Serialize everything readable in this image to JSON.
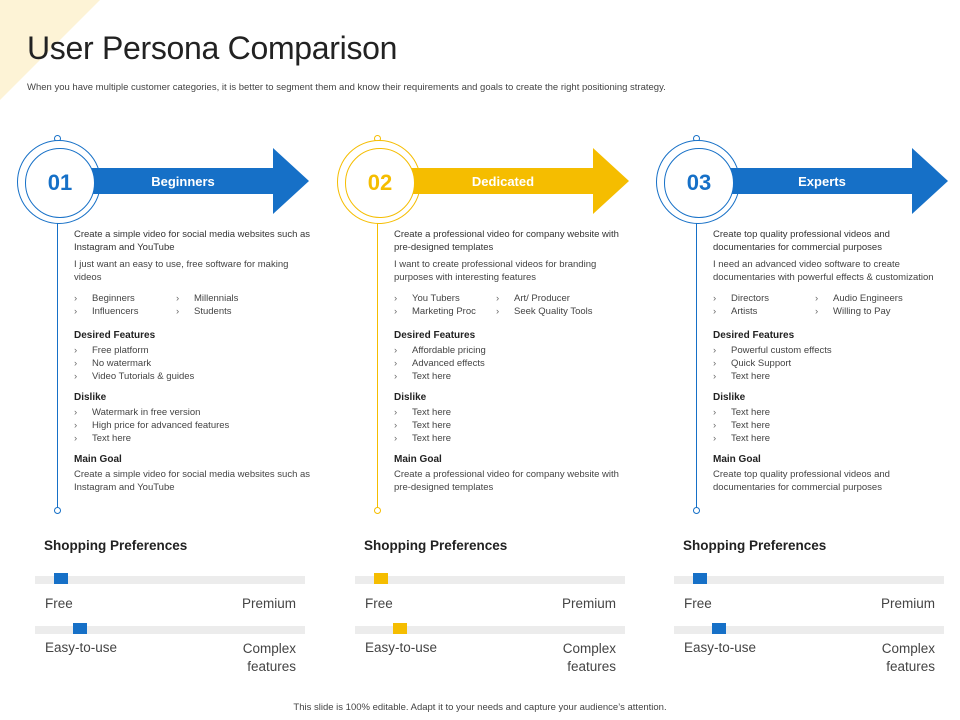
{
  "title": "User Persona Comparison",
  "subtitle": "When you have multiple customer categories, it is better to segment them and know their requirements and goals to create the right positioning strategy.",
  "footer": "This slide is 100% editable. Adapt it to your needs and capture your audience’s attention.",
  "personas": [
    {
      "number": "01",
      "name": "Beginners",
      "color": "#1670c7",
      "description": "Create a simple video for social media websites such as Instagram and YouTube",
      "quote": "I just want an easy to use, free software for making videos",
      "tags": [
        "Beginners",
        "Millennials",
        "Influencers",
        "Students"
      ],
      "desired_title": "Desired Features",
      "desired": [
        "Free platform",
        "No watermark",
        "Video Tutorials & guides"
      ],
      "dislike_title": "Dislike",
      "dislike": [
        "Watermark in free version",
        "High price for advanced features",
        "Text here"
      ],
      "goal_title": "Main Goal",
      "goal": "Create a simple video for social media websites such as Instagram and YouTube",
      "shopping_title": "Shopping Preferences",
      "pref1": {
        "left": "Free",
        "right": "Premium",
        "value": 0.07
      },
      "pref2": {
        "left": "Easy-to-use",
        "right": "Complex features",
        "value": 0.14
      }
    },
    {
      "number": "02",
      "name": "Dedicated",
      "color": "#f5bd00",
      "description": "Create a professional video for company website with pre-designed templates",
      "quote": "I want to create professional videos for branding purposes with interesting features",
      "tags": [
        "You Tubers",
        "Art/ Producer",
        "Marketing Proc",
        "Seek Quality Tools"
      ],
      "desired_title": "Desired Features",
      "desired": [
        "Affordable pricing",
        "Advanced effects",
        "Text here"
      ],
      "dislike_title": "Dislike",
      "dislike": [
        "Text here",
        "Text here",
        "Text here"
      ],
      "goal_title": "Main Goal",
      "goal": "Create a professional video for company website with pre-designed templates",
      "shopping_title": "Shopping Preferences",
      "pref1": {
        "left": "Free",
        "right": "Premium",
        "value": 0.07
      },
      "pref2": {
        "left": "Easy-to-use",
        "right": "Complex features",
        "value": 0.14
      }
    },
    {
      "number": "03",
      "name": "Experts",
      "color": "#1670c7",
      "description": "Create top quality professional videos and documentaries for commercial purposes",
      "quote": "I need an advanced video software to create documentaries with powerful effects & customization",
      "tags": [
        "Directors",
        "Audio Engineers",
        "Artists",
        "Willing to Pay"
      ],
      "desired_title": "Desired Features",
      "desired": [
        "Powerful custom effects",
        "Quick Support",
        "Text here"
      ],
      "dislike_title": "Dislike",
      "dislike": [
        "Text here",
        "Text here",
        "Text here"
      ],
      "goal_title": "Main Goal",
      "goal": "Create top quality professional videos and documentaries for commercial purposes",
      "shopping_title": "Shopping Preferences",
      "pref1": {
        "left": "Free",
        "right": "Premium",
        "value": 0.07
      },
      "pref2": {
        "left": "Easy-to-use",
        "right": "Complex features",
        "value": 0.14
      }
    }
  ]
}
